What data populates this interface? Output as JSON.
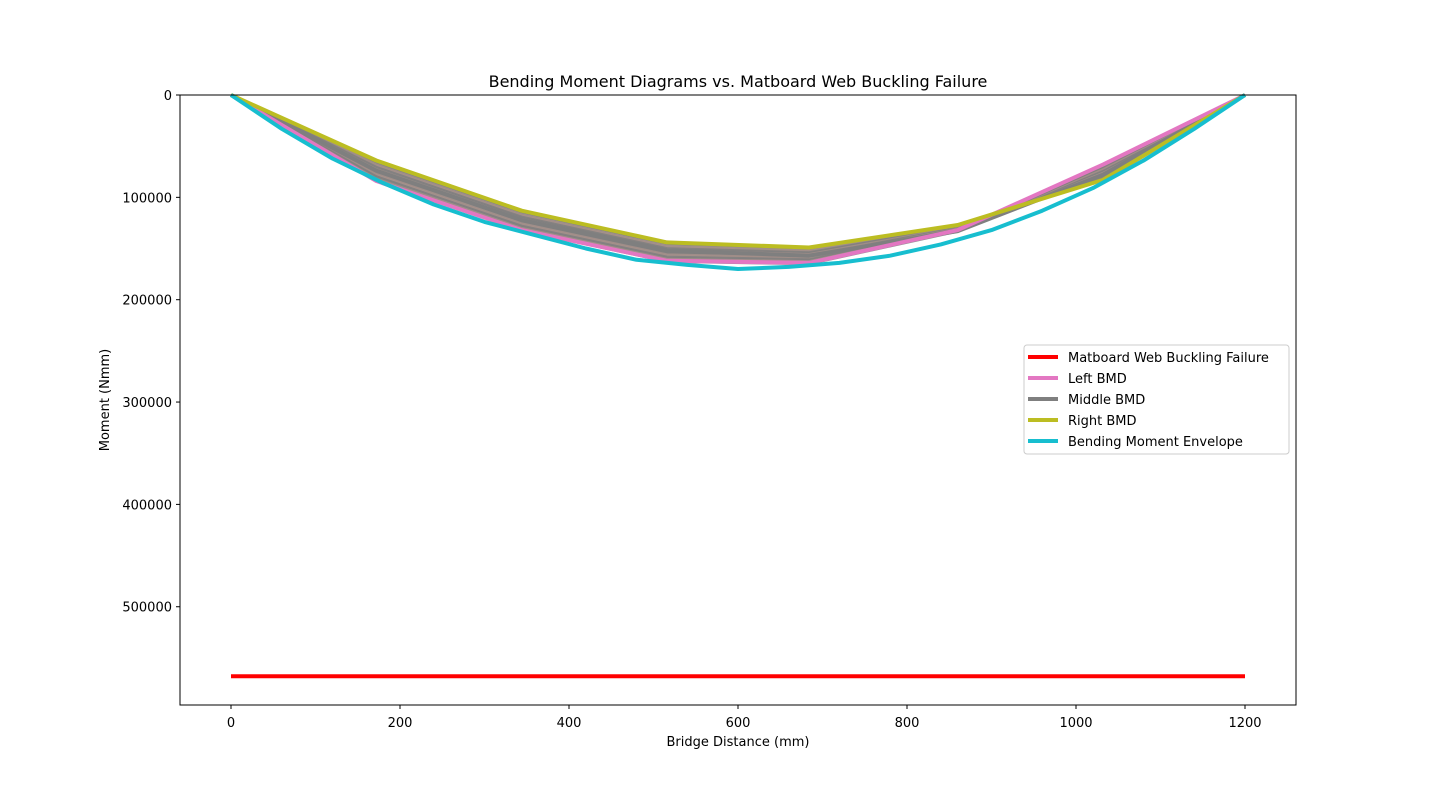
{
  "chart_data": {
    "type": "line",
    "title": "Bending Moment Diagrams vs. Matboard Web Buckling Failure",
    "xlabel": "Bridge Distance (mm)",
    "ylabel": "Moment (Nmm)",
    "xlim": [
      -60,
      1260
    ],
    "ylim": [
      0,
      596000
    ],
    "y_inverted": true,
    "xticks": [
      0,
      200,
      400,
      600,
      800,
      1000,
      1200
    ],
    "yticks": [
      0,
      100000,
      200000,
      300000,
      400000,
      500000
    ],
    "legend_position": "center-right",
    "grid": false,
    "series": [
      {
        "name": "Matboard Web Buckling Failure",
        "color": "#ff0000",
        "x": [
          0,
          1200
        ],
        "y": [
          568000,
          568000
        ]
      },
      {
        "name": "Left BMD",
        "color": "#e377c2",
        "x": [
          0,
          172,
          344,
          516,
          684,
          860,
          1032,
          1200
        ],
        "y": [
          0,
          84000,
          132000,
          162000,
          164000,
          132000,
          68000,
          0
        ]
      },
      {
        "name": "Middle BMD",
        "color": "#7f7f7f",
        "x": [
          0,
          172,
          344,
          516,
          684,
          860,
          1032,
          1200
        ],
        "y": [
          0,
          74000,
          122000,
          152000,
          157000,
          133000,
          78000,
          0
        ]
      },
      {
        "name": "Right BMD",
        "color": "#bcbd22",
        "x": [
          0,
          172,
          344,
          516,
          684,
          860,
          1032,
          1200
        ],
        "y": [
          0,
          64000,
          113000,
          144000,
          149000,
          127000,
          83000,
          0
        ]
      },
      {
        "name": "Bending Moment Envelope",
        "color": "#17becf",
        "x": [
          0,
          60,
          120,
          180,
          240,
          300,
          360,
          420,
          480,
          540,
          600,
          660,
          720,
          780,
          840,
          900,
          960,
          1020,
          1080,
          1140,
          1200
        ],
        "y": [
          0,
          33000,
          62000,
          86000,
          107000,
          124000,
          137000,
          150000,
          161000,
          166000,
          170000,
          168000,
          164000,
          157000,
          146000,
          132000,
          113000,
          91000,
          64000,
          33000,
          0
        ]
      }
    ]
  }
}
